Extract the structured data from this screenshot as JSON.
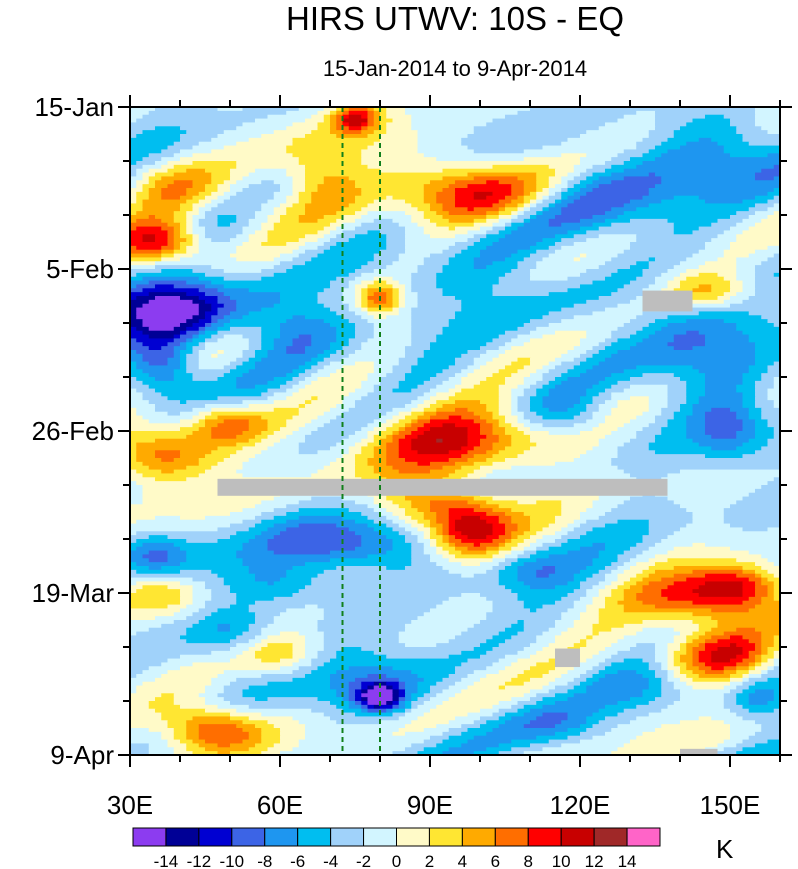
{
  "chart_data": {
    "type": "heatmap",
    "title": "HIRS UTWV: 10S - EQ",
    "subtitle": "15-Jan-2014 to 9-Apr-2014",
    "xlim": [
      30,
      160
    ],
    "ylim_days": [
      0,
      84
    ],
    "x_ticks": [
      {
        "value": 30,
        "label": "30E"
      },
      {
        "value": 60,
        "label": "60E"
      },
      {
        "value": 90,
        "label": "90E"
      },
      {
        "value": 120,
        "label": "120E"
      },
      {
        "value": 150,
        "label": "150E"
      }
    ],
    "y_ticks": [
      {
        "day": 0,
        "label": "15-Jan"
      },
      {
        "day": 21,
        "label": "5-Feb"
      },
      {
        "day": 42,
        "label": "26-Feb"
      },
      {
        "day": 63,
        "label": "19-Mar"
      },
      {
        "day": 84,
        "label": "9-Apr"
      }
    ],
    "y_minor_tick_interval_days": 7,
    "reference_lines_lon": [
      72.5,
      80
    ],
    "colorbar": {
      "units": "K",
      "levels": [
        -14,
        -12,
        -10,
        -8,
        -6,
        -4,
        -2,
        0,
        2,
        4,
        6,
        8,
        10,
        12,
        14
      ],
      "labels": [
        "-14",
        "-12",
        "-10",
        "-8",
        "-6",
        "-4",
        "-2",
        "0",
        "2",
        "4",
        "6",
        "8",
        "10",
        "12",
        "14"
      ],
      "colors": [
        "#8c3cf0",
        "#000096",
        "#0000d2",
        "#3c64e6",
        "#1e96f0",
        "#00bef0",
        "#a0d2fa",
        "#d2f5ff",
        "#fffac8",
        "#ffe632",
        "#ffaa00",
        "#ff6e00",
        "#ff0000",
        "#c80000",
        "#a02828",
        "#ff64c8"
      ]
    },
    "missing_data_color": "#bebebe",
    "missing_regions": [
      {
        "lon": [
          47.5,
          137.5
        ],
        "day": [
          48.2,
          50.4
        ]
      },
      {
        "lon": [
          132.5,
          142.5
        ],
        "day": [
          23.8,
          26.5
        ]
      },
      {
        "lon": [
          115,
          120
        ],
        "day": [
          70.2,
          72.6
        ]
      },
      {
        "lon": [
          140,
          147.5
        ],
        "day": [
          83.2,
          84
        ]
      }
    ],
    "anomaly_features": [
      {
        "lon": 75,
        "day": 1.5,
        "sigma_lon": 3.2,
        "sigma_day": 1.3,
        "amp": 10
      },
      {
        "lon": 75,
        "day": 4,
        "sigma_lon": 12,
        "sigma_day": 3,
        "amp": 3
      },
      {
        "lon": 68,
        "day": 9.5,
        "sigma_lon": 6,
        "sigma_day": 3,
        "amp": 6
      },
      {
        "lon": 98,
        "day": 11,
        "sigma_lon": 12,
        "sigma_day": 2.8,
        "amp": 10
      },
      {
        "lon": 37,
        "day": 10,
        "sigma_lon": 7,
        "sigma_day": 2.5,
        "amp": 4.5
      },
      {
        "lon": 36,
        "day": 17.5,
        "sigma_lon": 6,
        "sigma_day": 2,
        "amp": 11
      },
      {
        "lon": 56,
        "day": 13,
        "sigma_lon": 6,
        "sigma_day": 2,
        "amp": 3
      },
      {
        "lon": 80,
        "day": 24.8,
        "sigma_lon": 3,
        "sigma_day": 1.5,
        "amp": 9
      },
      {
        "lon": 146,
        "day": 24,
        "sigma_lon": 6,
        "sigma_day": 1.8,
        "amp": 7
      },
      {
        "lon": 38,
        "day": 26.5,
        "sigma_lon": 9,
        "sigma_day": 3,
        "amp": -12
      },
      {
        "lon": 37,
        "day": 34,
        "sigma_lon": 5,
        "sigma_day": 3,
        "amp": -9
      },
      {
        "lon": 62,
        "day": 28,
        "sigma_lon": 8,
        "sigma_day": 3,
        "amp": -6
      },
      {
        "lon": 145,
        "day": 32,
        "sigma_lon": 10,
        "sigma_day": 5,
        "amp": -6
      },
      {
        "lon": 125,
        "day": 12,
        "sigma_lon": 14,
        "sigma_day": 4,
        "amp": -5
      },
      {
        "lon": 148,
        "day": 6,
        "sigma_lon": 10,
        "sigma_day": 4,
        "amp": -5
      },
      {
        "lon": 100,
        "day": 23,
        "sigma_lon": 14,
        "sigma_day": 4,
        "amp": -3
      },
      {
        "lon": 97,
        "day": 43,
        "sigma_lon": 12,
        "sigma_day": 3,
        "amp": 10
      },
      {
        "lon": 36,
        "day": 45,
        "sigma_lon": 8,
        "sigma_day": 2.5,
        "amp": 10
      },
      {
        "lon": 49,
        "day": 41,
        "sigma_lon": 6,
        "sigma_day": 2,
        "amp": 9
      },
      {
        "lon": 88,
        "day": 48,
        "sigma_lon": 10,
        "sigma_day": 4,
        "amp": 4
      },
      {
        "lon": 98,
        "day": 55,
        "sigma_lon": 6,
        "sigma_day": 2.5,
        "amp": 11
      },
      {
        "lon": 92,
        "day": 51.5,
        "sigma_lon": 8,
        "sigma_day": 2,
        "amp": 6
      },
      {
        "lon": 145,
        "day": 64,
        "sigma_lon": 9,
        "sigma_day": 2.5,
        "amp": 11
      },
      {
        "lon": 152,
        "day": 62,
        "sigma_lon": 6,
        "sigma_day": 2,
        "amp": 9
      },
      {
        "lon": 147,
        "day": 71,
        "sigma_lon": 8,
        "sigma_day": 2.5,
        "amp": 10
      },
      {
        "lon": 46,
        "day": 80.5,
        "sigma_lon": 7,
        "sigma_day": 2.2,
        "amp": 12
      },
      {
        "lon": 35,
        "day": 63,
        "sigma_lon": 6,
        "sigma_day": 2,
        "amp": 6
      },
      {
        "lon": 60,
        "day": 71,
        "sigma_lon": 6,
        "sigma_day": 2,
        "amp": 6
      },
      {
        "lon": 75,
        "day": 57,
        "sigma_lon": 12,
        "sigma_day": 2.5,
        "amp": -8
      },
      {
        "lon": 80,
        "day": 76.5,
        "sigma_lon": 3,
        "sigma_day": 1.2,
        "amp": -12
      },
      {
        "lon": 78,
        "day": 75,
        "sigma_lon": 9,
        "sigma_day": 3,
        "amp": -6
      },
      {
        "lon": 60,
        "day": 62,
        "sigma_lon": 8,
        "sigma_day": 2,
        "amp": -5
      },
      {
        "lon": 50,
        "day": 68,
        "sigma_lon": 6,
        "sigma_day": 2.5,
        "amp": -5
      },
      {
        "lon": 35,
        "day": 58,
        "sigma_lon": 5,
        "sigma_day": 2,
        "amp": -6
      },
      {
        "lon": 118,
        "day": 40,
        "sigma_lon": 6,
        "sigma_day": 2,
        "amp": -4
      },
      {
        "lon": 150,
        "day": 42,
        "sigma_lon": 5,
        "sigma_day": 3,
        "amp": -6
      },
      {
        "lon": 110,
        "day": 60,
        "sigma_lon": 6,
        "sigma_day": 2,
        "amp": -4
      },
      {
        "lon": 132,
        "day": 75,
        "sigma_lon": 8,
        "sigma_day": 2,
        "amp": -3
      },
      {
        "lon": 156,
        "day": 77,
        "sigma_lon": 4,
        "sigma_day": 2,
        "amp": -5
      },
      {
        "lon": 115,
        "day": 80,
        "sigma_lon": 6,
        "sigma_day": 2,
        "amp": -3
      }
    ]
  }
}
